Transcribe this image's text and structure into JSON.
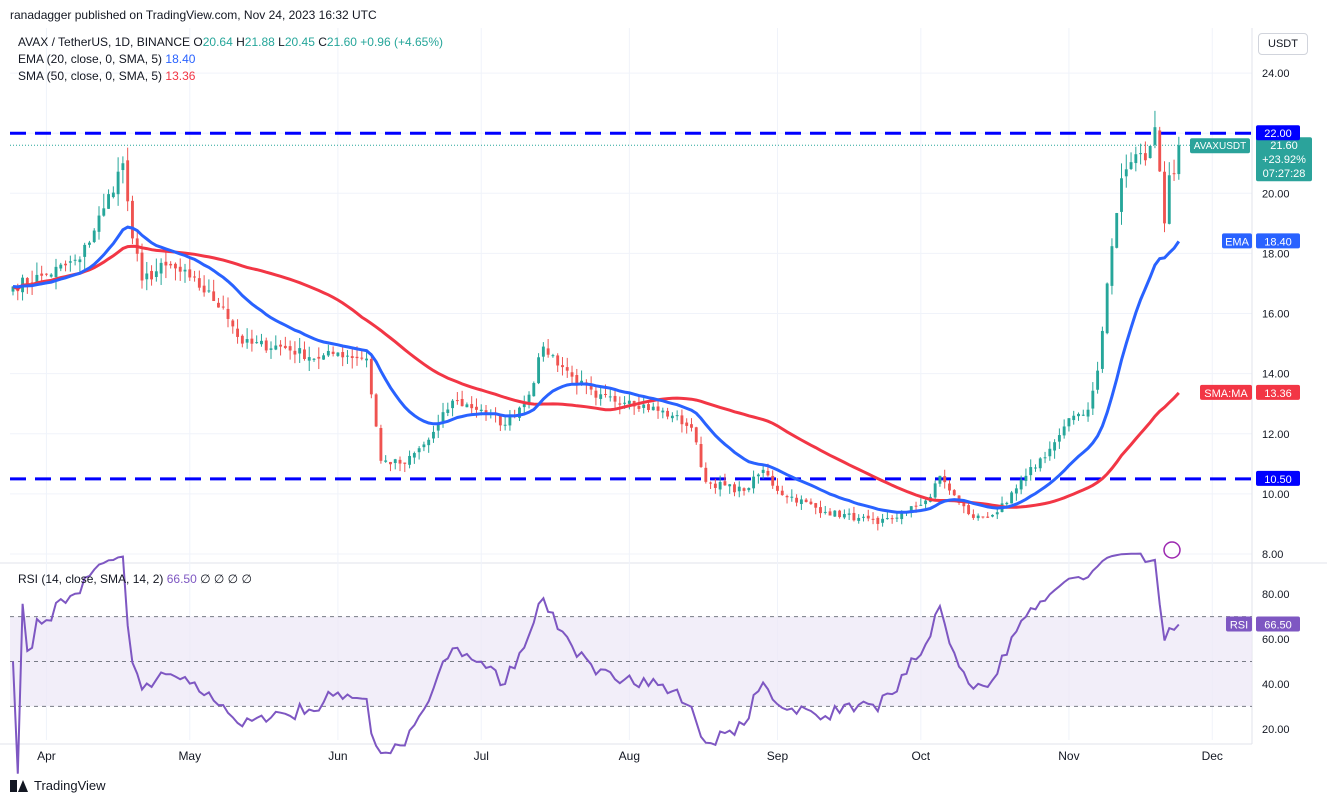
{
  "header": {
    "published": "ranadagger published on TradingView.com, Nov 24, 2023 16:32 UTC",
    "symbol": "AVAX / TetherUS, 1D, BINANCE",
    "ohlc": [
      {
        "k": "O",
        "v": "20.64"
      },
      {
        "k": "H",
        "v": "21.88"
      },
      {
        "k": "L",
        "v": "20.45"
      },
      {
        "k": "C",
        "v": "21.60"
      }
    ],
    "change": "+0.96 (+4.65%)",
    "ema_label": "EMA (20, close, 0, SMA, 5)",
    "ema_value": "18.40",
    "sma_label": "SMA (50, close, 0, SMA, 5)",
    "sma_value": "13.36",
    "rsi_label": "RSI (14, close, SMA, 14, 2)",
    "rsi_value": "66.50",
    "rsi_extra": "∅ ∅ ∅ ∅"
  },
  "currency_button": "USDT",
  "branding": "TradingView",
  "colors": {
    "up": "#26a69a",
    "down": "#ef5350",
    "ema": "#2962ff",
    "sma": "#f23645",
    "rsi": "#7e57c2",
    "level": "#0000ff",
    "label_bg": "#2ba39b"
  },
  "chart_data": {
    "type": "candlestick",
    "symbol": "AVAXUSDT",
    "x_ticks": [
      "Apr",
      "May",
      "Jun",
      "Jul",
      "Aug",
      "Sep",
      "Oct",
      "Nov",
      "Dec"
    ],
    "y_ticks": [
      "24.00",
      "22.00",
      "20.00",
      "18.00",
      "16.00",
      "14.00",
      "12.00",
      "10.00",
      "8.00"
    ],
    "ylim": [
      7.8,
      25.5
    ],
    "start_date": "2023-03-25",
    "close_anchors": [
      [
        "2023-03-25",
        16.9
      ],
      [
        "2023-04-01",
        17.3
      ],
      [
        "2023-04-08",
        17.8
      ],
      [
        "2023-04-13",
        19.5
      ],
      [
        "2023-04-17",
        21.0
      ],
      [
        "2023-04-19",
        18.5
      ],
      [
        "2023-04-21",
        17.1
      ],
      [
        "2023-04-26",
        17.6
      ],
      [
        "2023-05-01",
        17.2
      ],
      [
        "2023-05-08",
        16.2
      ],
      [
        "2023-05-12",
        15.0
      ],
      [
        "2023-05-20",
        14.9
      ],
      [
        "2023-05-28",
        14.5
      ],
      [
        "2023-06-01",
        14.7
      ],
      [
        "2023-06-07",
        14.5
      ],
      [
        "2023-06-10",
        11.1
      ],
      [
        "2023-06-15",
        11.0
      ],
      [
        "2023-06-20",
        11.8
      ],
      [
        "2023-06-25",
        13.1
      ],
      [
        "2023-07-01",
        12.8
      ],
      [
        "2023-07-06",
        12.3
      ],
      [
        "2023-07-11",
        13.3
      ],
      [
        "2023-07-14",
        14.9
      ],
      [
        "2023-07-20",
        13.9
      ],
      [
        "2023-07-25",
        13.2
      ],
      [
        "2023-08-01",
        13.1
      ],
      [
        "2023-08-10",
        12.6
      ],
      [
        "2023-08-14",
        12.2
      ],
      [
        "2023-08-17",
        10.4
      ],
      [
        "2023-08-25",
        10.1
      ],
      [
        "2023-08-29",
        10.8
      ],
      [
        "2023-09-01",
        10.1
      ],
      [
        "2023-09-11",
        9.4
      ],
      [
        "2023-09-18",
        9.2
      ],
      [
        "2023-09-22",
        9.0
      ],
      [
        "2023-09-28",
        9.4
      ],
      [
        "2023-10-03",
        9.9
      ],
      [
        "2023-10-05",
        10.6
      ],
      [
        "2023-10-09",
        9.7
      ],
      [
        "2023-10-12",
        9.2
      ],
      [
        "2023-10-16",
        9.3
      ],
      [
        "2023-10-19",
        9.7
      ],
      [
        "2023-10-23",
        10.6
      ],
      [
        "2023-10-28",
        11.5
      ],
      [
        "2023-11-02",
        12.6
      ],
      [
        "2023-11-05",
        12.8
      ],
      [
        "2023-11-07",
        14.1
      ],
      [
        "2023-11-09",
        17.0
      ],
      [
        "2023-11-12",
        20.5
      ],
      [
        "2023-11-15",
        21.3
      ],
      [
        "2023-11-17",
        21.1
      ],
      [
        "2023-11-19",
        22.2
      ],
      [
        "2023-11-21",
        19.0
      ],
      [
        "2023-11-22",
        20.6
      ],
      [
        "2023-11-23",
        20.64
      ],
      [
        "2023-11-24",
        21.6
      ]
    ],
    "last_candle": {
      "open": 20.64,
      "high": 21.88,
      "low": 20.45,
      "close": 21.6
    },
    "horizontal_levels": [
      22.0,
      10.5
    ],
    "ema20_last": 18.4,
    "sma50_last": 13.36,
    "rsi_last": 66.5,
    "rsi_bands": [
      70,
      50,
      30
    ],
    "rsi_ticks": [
      "80.00",
      "60.00",
      "40.00",
      "20.00"
    ],
    "rsi_ylim": [
      15,
      93
    ],
    "price_labels": {
      "symbol": "AVAXUSDT",
      "price": "21.60",
      "change": "+23.92%",
      "countdown": "07:27:28",
      "ema_tag": "EMA",
      "ema": "18.40",
      "sma_tag": "SMA:MA",
      "sma": "13.36",
      "level_high": "22.00",
      "level_low": "10.50",
      "rsi_tag": "RSI",
      "rsi": "66.50"
    }
  }
}
